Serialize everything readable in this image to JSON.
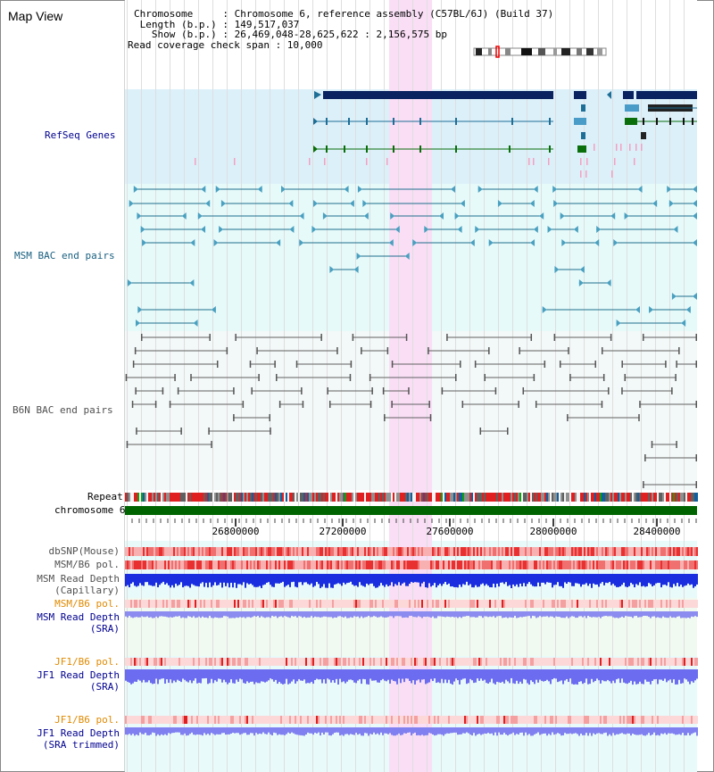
{
  "view_title": "Map View",
  "info": {
    "chromosome": "Chromosome     : Chromosome 6, reference assembly (C57BL/6J) (Build 37)",
    "length": " Length (b.p.) : 149,517,037",
    "show": "   Show (b.p.) : 26,469,048-28,625,622 : 2,156,575 bp",
    "coverage": "Read coverage check span : 10,000"
  },
  "tracks": {
    "refseq": "RefSeq Genes",
    "msm_bac": "MSM BAC end pairs",
    "b6n_bac": "B6N BAC end pairs",
    "repeat": "Repeat",
    "chromosome": "chromosome 6",
    "dbsnp": "dbSNP(Mouse)",
    "msm_b6_pol_a": "MSM/B6 pol.",
    "msm_depth_cap_1": "MSM Read Depth",
    "msm_depth_cap_2": "(Capillary)",
    "msm_b6_pol_b": "MSM/B6 pol.",
    "msm_depth_sra_1": "MSM Read Depth",
    "msm_depth_sra_2": "(SRA)",
    "jf1_b6_pol_a": "JF1/B6 pol.",
    "jf1_depth_sra_1": "JF1 Read Depth",
    "jf1_depth_sra_2": "(SRA)",
    "jf1_b6_pol_b": "JF1/B6 pol.",
    "jf1_depth_trim_1": "JF1 Read Depth",
    "jf1_depth_trim_2": "(SRA trimmed)"
  },
  "axis": {
    "ticks": [
      "26800000",
      "27200000",
      "27600000",
      "28000000",
      "28400000"
    ]
  },
  "colors": {
    "refseq_bg": "#dcf0fa",
    "bac_bg": "#e6fafa",
    "b6n_bg": "#f3f8f8",
    "highlight": "#fadcf5",
    "gene_dark": "#0a2260",
    "gene_blue": "#1e6e96",
    "gene_green": "#0a6e0a",
    "msm_color": "#1e6e8c",
    "b6n_color": "#606060",
    "chromosome_bar": "#006400",
    "label_blue": "#000090",
    "label_teal": "#1a6080",
    "label_gray": "#505050",
    "label_orange": "#e08a00"
  }
}
